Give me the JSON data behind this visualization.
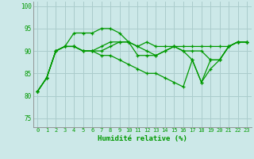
{
  "xlabel": "Humidité relative (%)",
  "background_color": "#cce8e8",
  "grid_color": "#aacccc",
  "line_color": "#009900",
  "xlim": [
    -0.5,
    23.5
  ],
  "ylim": [
    73,
    101
  ],
  "yticks": [
    75,
    80,
    85,
    90,
    95,
    100
  ],
  "xticks": [
    0,
    1,
    2,
    3,
    4,
    5,
    6,
    7,
    8,
    9,
    10,
    11,
    12,
    13,
    14,
    15,
    16,
    17,
    18,
    19,
    20,
    21,
    22,
    23
  ],
  "lines": [
    [
      81,
      84,
      90,
      91,
      94,
      94,
      94,
      95,
      95,
      94,
      92,
      89,
      89,
      89,
      90,
      91,
      90,
      88,
      83,
      86,
      88,
      91,
      92,
      92
    ],
    [
      81,
      84,
      90,
      91,
      91,
      90,
      90,
      91,
      92,
      92,
      92,
      91,
      92,
      91,
      91,
      91,
      91,
      91,
      91,
      91,
      91,
      91,
      92,
      92
    ],
    [
      81,
      84,
      90,
      91,
      91,
      90,
      90,
      89,
      89,
      88,
      87,
      86,
      85,
      85,
      84,
      83,
      82,
      88,
      83,
      88,
      88,
      91,
      92,
      92
    ],
    [
      81,
      84,
      90,
      91,
      91,
      90,
      90,
      90,
      91,
      92,
      92,
      91,
      90,
      89,
      90,
      91,
      90,
      90,
      90,
      88,
      88,
      91,
      92,
      92
    ]
  ]
}
